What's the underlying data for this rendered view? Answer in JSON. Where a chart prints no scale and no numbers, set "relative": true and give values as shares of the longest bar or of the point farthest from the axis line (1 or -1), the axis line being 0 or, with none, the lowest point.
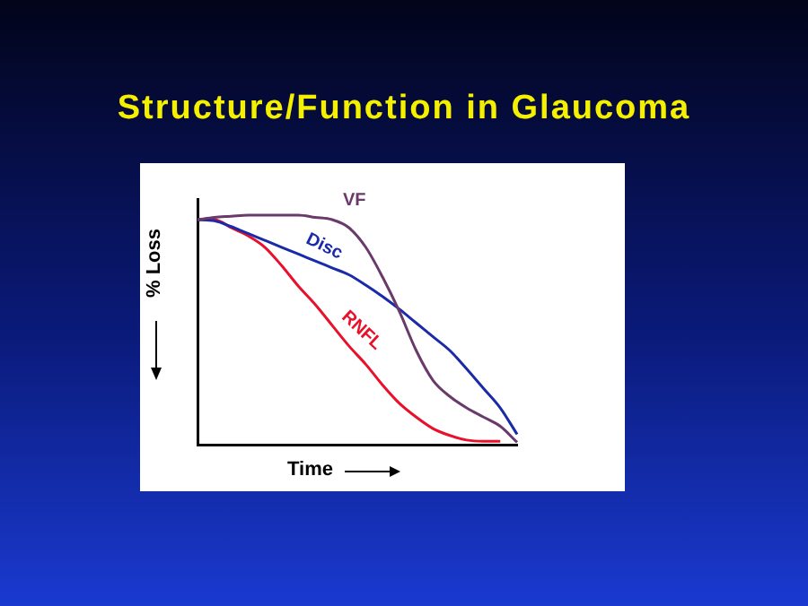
{
  "chart_data": {
    "type": "line",
    "title": "Structure/Function in Glaucoma",
    "xlabel": "Time",
    "ylabel": "% Loss",
    "relative": true,
    "legend": false,
    "marker": "none",
    "line_style": "solid",
    "categories": [
      null,
      null,
      null,
      null,
      null,
      null,
      null,
      null,
      null,
      null,
      null,
      null,
      null,
      null,
      null,
      null,
      null,
      null,
      null,
      null
    ],
    "series": [
      {
        "name": "VF",
        "color": "#6a3a6a",
        "values": [
          0.98,
          0.99,
          0.995,
          1.0,
          1.0,
          1.0,
          1.0,
          0.99,
          0.98,
          0.945,
          0.86,
          0.73,
          0.58,
          0.41,
          0.28,
          0.21,
          0.16,
          0.12,
          0.08,
          0.01
        ]
      },
      {
        "name": "Disc",
        "color": "#1a2aa8",
        "values": [
          0.98,
          0.975,
          0.95,
          0.92,
          0.89,
          0.86,
          0.83,
          0.8,
          0.77,
          0.74,
          0.695,
          0.645,
          0.59,
          0.53,
          0.47,
          0.41,
          0.33,
          0.245,
          0.16,
          0.045
        ]
      },
      {
        "name": "RNFL",
        "color": "#e8102a",
        "values": [
          0.98,
          0.98,
          0.945,
          0.91,
          0.86,
          0.78,
          0.69,
          0.61,
          0.52,
          0.43,
          0.35,
          0.26,
          0.18,
          0.12,
          0.07,
          0.04,
          0.02,
          0.015,
          0.015,
          null
        ]
      }
    ]
  }
}
